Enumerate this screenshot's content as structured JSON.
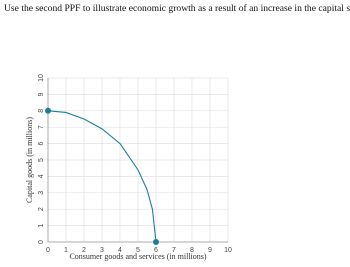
{
  "chart_data": {
    "type": "line",
    "title": "Use the second PPF to illustrate economic growth as a result of an increase in the capital stock.",
    "xlabel": "Consumer goods and services (in millions)",
    "ylabel": "Capital goods (in millions)",
    "series": [
      {
        "color": "#1b7d9c",
        "x": [
          0,
          1,
          2,
          3,
          4,
          5,
          5.5,
          5.8,
          6
        ],
        "values": [
          8,
          7.9,
          7.5,
          6.9,
          6.0,
          4.4,
          3.2,
          2.0,
          0
        ]
      }
    ],
    "xlim": [
      0,
      10
    ],
    "ylim": [
      0,
      10
    ],
    "xticks": [
      0,
      1,
      2,
      3,
      4,
      5,
      6,
      7,
      8,
      9,
      10
    ],
    "yticks": [
      0,
      1,
      2,
      3,
      4,
      5,
      6,
      7,
      8,
      9,
      10
    ],
    "grid": true
  }
}
